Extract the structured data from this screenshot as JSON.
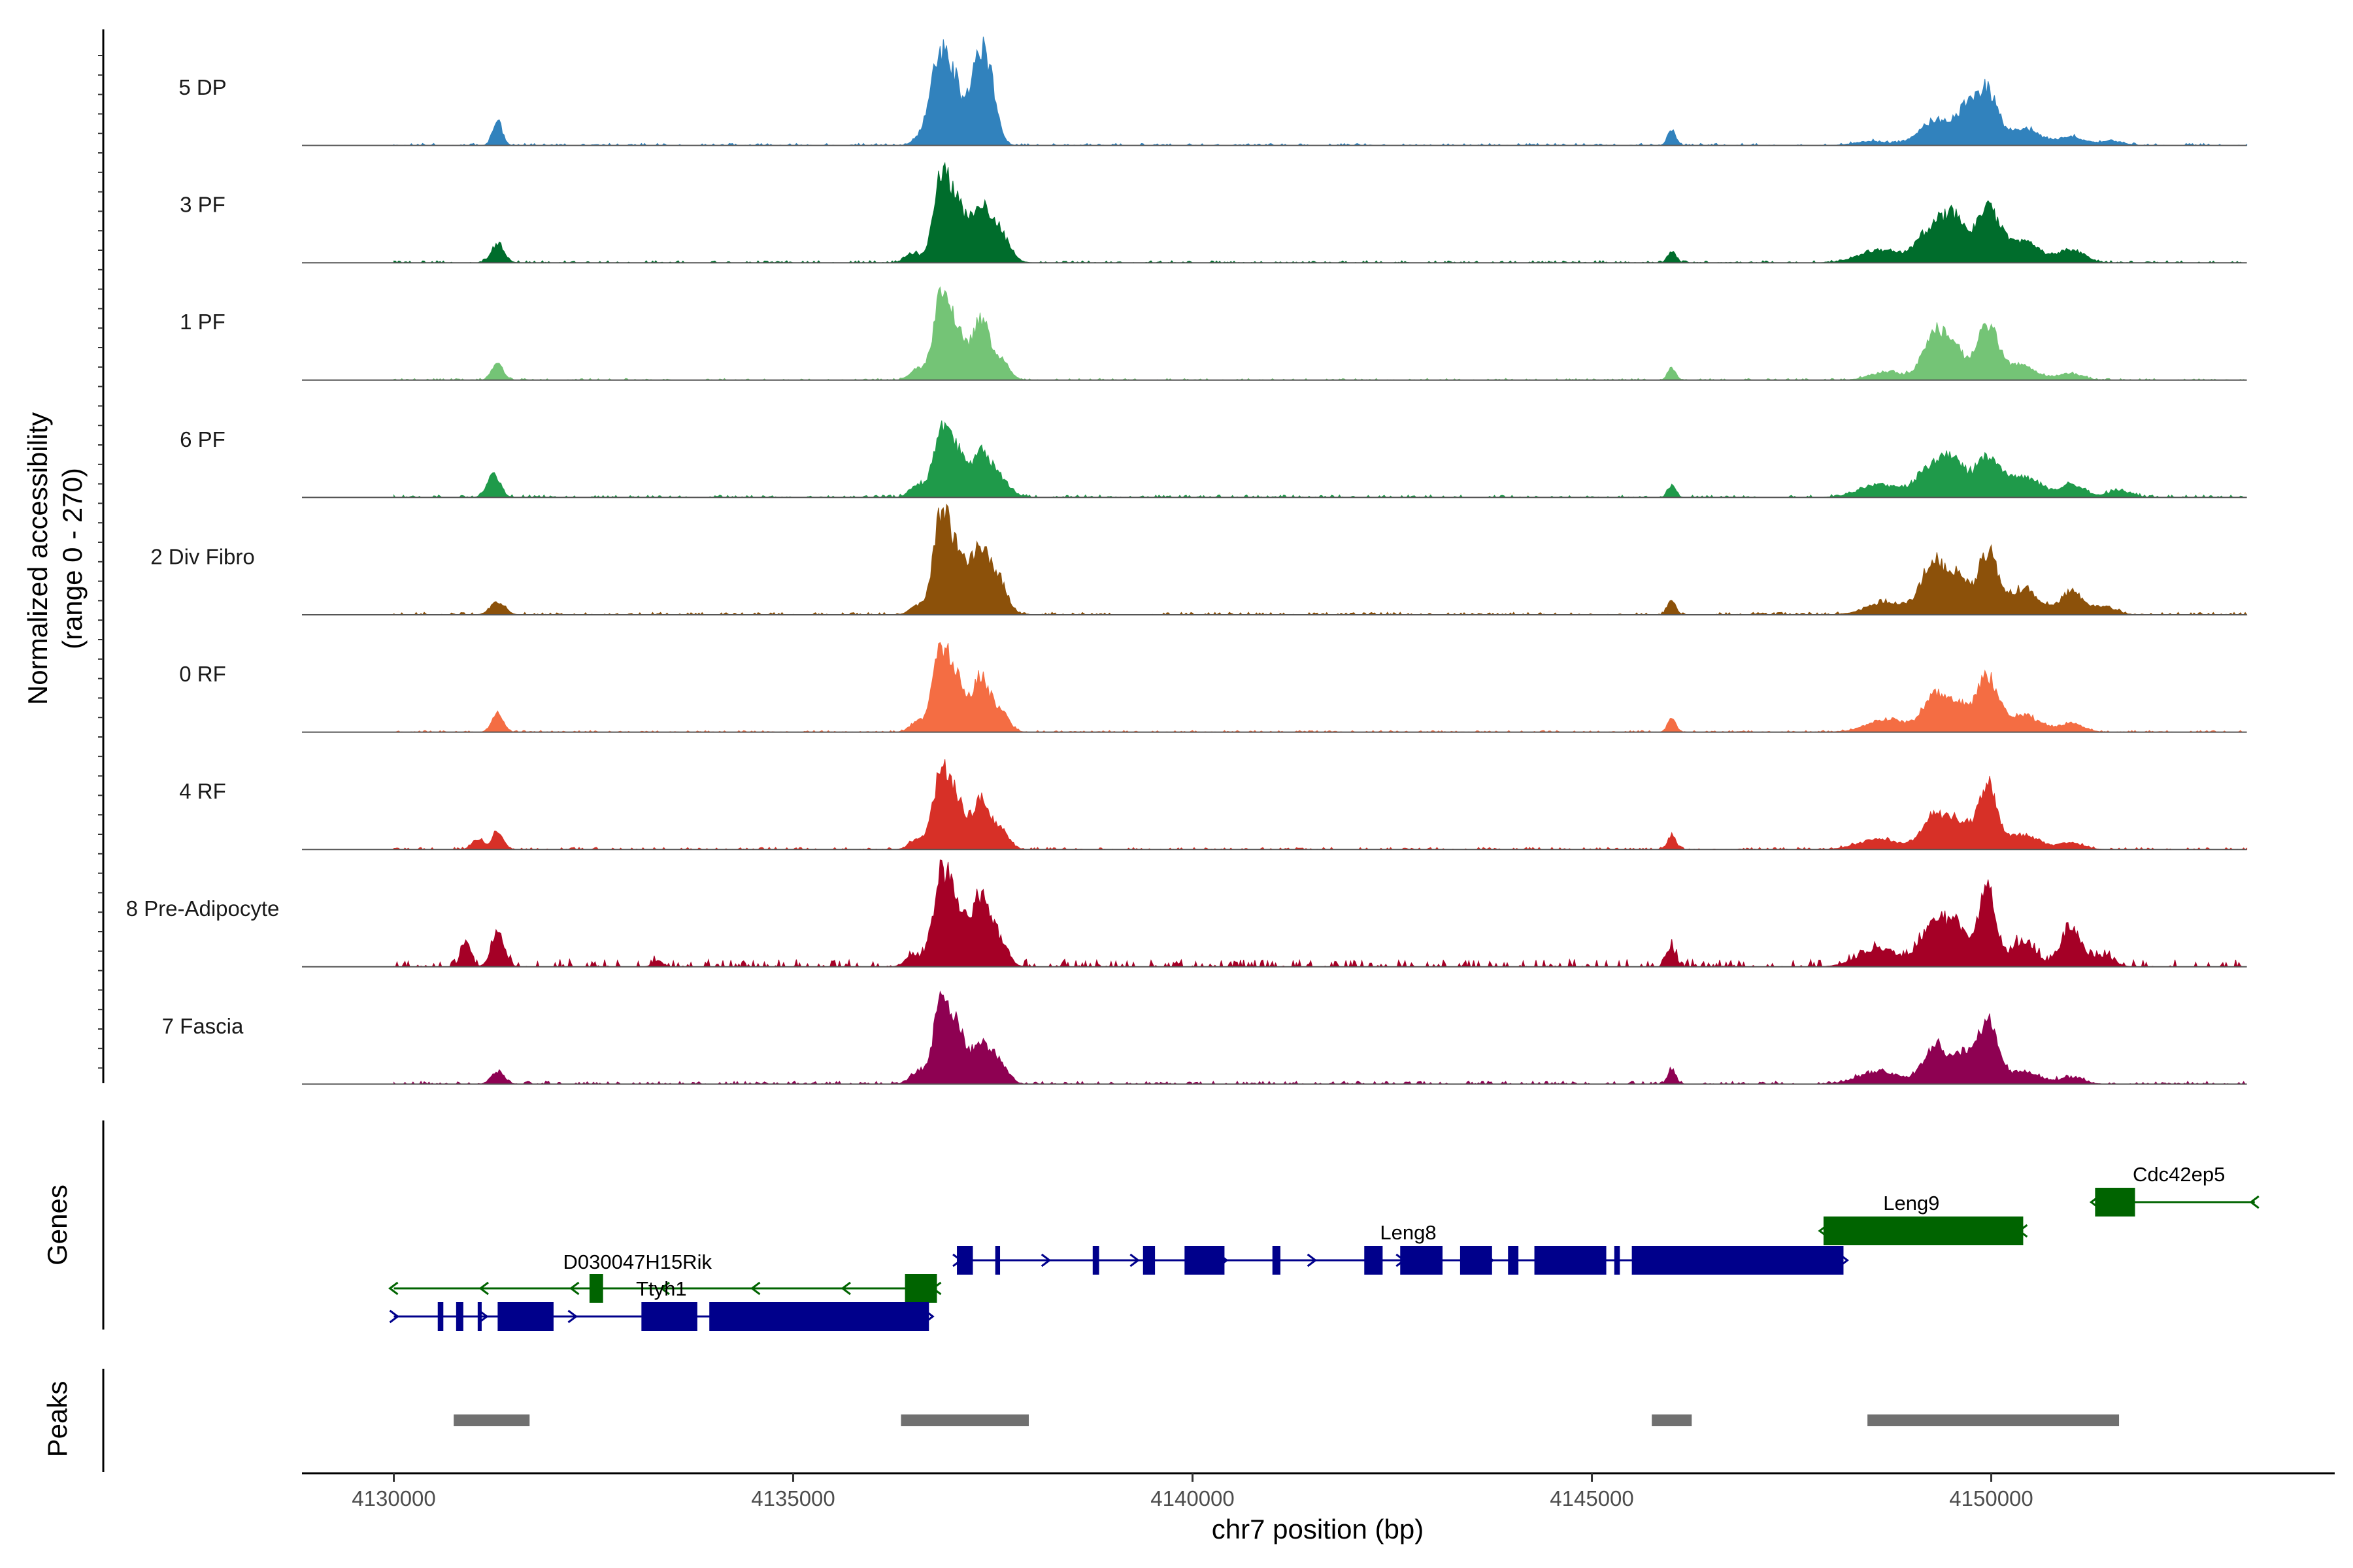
{
  "chart_data": {
    "type": "area",
    "title": "",
    "chromosome": "chr7",
    "xlabel": "chr7 position (bp)",
    "ylabel": "Normalized accessibility",
    "ylabel_range": "(range 0 - 270)",
    "xlim": [
      4128850,
      4154300
    ],
    "ylim": [
      0,
      270
    ],
    "x_ticks": [
      4130000,
      4135000,
      4140000,
      4145000,
      4150000
    ],
    "x_tick_labels": [
      "4130000",
      "4135000",
      "4140000",
      "4145000",
      "4150000"
    ],
    "data_range": [
      4130000,
      4153200
    ],
    "tracks": [
      {
        "name": "5 DP",
        "color": "#3182bd",
        "noise": 5,
        "seed": 11,
        "peaks": [
          [
            4131300,
            55,
            60
          ],
          [
            4136550,
            10,
            80
          ],
          [
            4136800,
            178,
            110
          ],
          [
            4137000,
            150,
            110
          ],
          [
            4137300,
            170,
            100
          ],
          [
            4137450,
            140,
            100
          ],
          [
            4146000,
            38,
            50
          ],
          [
            4148500,
            10,
            200
          ],
          [
            4149300,
            60,
            200
          ],
          [
            4149700,
            80,
            130
          ],
          [
            4149950,
            120,
            130
          ],
          [
            4150400,
            40,
            200
          ],
          [
            4151000,
            20,
            160
          ],
          [
            4151500,
            10,
            150
          ]
        ]
      },
      {
        "name": "3 PF",
        "color": "#006d2c",
        "noise": 5,
        "seed": 22,
        "peaks": [
          [
            4131300,
            45,
            80
          ],
          [
            4136500,
            22,
            90
          ],
          [
            4136850,
            200,
            100
          ],
          [
            4137050,
            120,
            100
          ],
          [
            4137350,
            130,
            130
          ],
          [
            4137600,
            60,
            120
          ],
          [
            4146000,
            28,
            50
          ],
          [
            4148600,
            30,
            250
          ],
          [
            4149300,
            90,
            200
          ],
          [
            4149550,
            70,
            120
          ],
          [
            4149950,
            125,
            150
          ],
          [
            4150400,
            50,
            200
          ],
          [
            4151000,
            30,
            160
          ]
        ]
      },
      {
        "name": "1 PF",
        "color": "#74c476",
        "noise": 4,
        "seed": 33,
        "peaks": [
          [
            4131300,
            40,
            70
          ],
          [
            4136550,
            25,
            90
          ],
          [
            4136850,
            190,
            100
          ],
          [
            4137050,
            110,
            100
          ],
          [
            4137350,
            140,
            110
          ],
          [
            4137600,
            45,
            100
          ],
          [
            4146000,
            28,
            50
          ],
          [
            4148700,
            20,
            200
          ],
          [
            4149300,
            110,
            150
          ],
          [
            4149550,
            60,
            120
          ],
          [
            4149950,
            130,
            130
          ],
          [
            4150350,
            35,
            200
          ],
          [
            4151000,
            15,
            150
          ]
        ]
      },
      {
        "name": "6 PF",
        "color": "#1f9a4a",
        "noise": 6,
        "seed": 44,
        "peaks": [
          [
            4131250,
            55,
            80
          ],
          [
            4136550,
            30,
            90
          ],
          [
            4136850,
            150,
            100
          ],
          [
            4137050,
            100,
            100
          ],
          [
            4137350,
            110,
            120
          ],
          [
            4137600,
            40,
            120
          ],
          [
            4146000,
            28,
            50
          ],
          [
            4148600,
            30,
            250
          ],
          [
            4149300,
            80,
            200
          ],
          [
            4149550,
            60,
            120
          ],
          [
            4149950,
            95,
            150
          ],
          [
            4150400,
            50,
            200
          ],
          [
            4151000,
            30,
            160
          ],
          [
            4151600,
            15,
            150
          ]
        ]
      },
      {
        "name": "2 Div Fibro",
        "color": "#8c510a",
        "noise": 6,
        "seed": 55,
        "peaks": [
          [
            4131300,
            30,
            90
          ],
          [
            4136550,
            20,
            90
          ],
          [
            4136850,
            225,
            100
          ],
          [
            4137050,
            130,
            100
          ],
          [
            4137350,
            160,
            130
          ],
          [
            4137600,
            60,
            100
          ],
          [
            4146000,
            35,
            50
          ],
          [
            4148700,
            30,
            250
          ],
          [
            4149300,
            130,
            160
          ],
          [
            4149600,
            80,
            100
          ],
          [
            4149950,
            145,
            130
          ],
          [
            4150400,
            60,
            200
          ],
          [
            4151000,
            55,
            130
          ],
          [
            4151400,
            20,
            150
          ]
        ]
      },
      {
        "name": "0 RF",
        "color": "#f46d43",
        "noise": 4,
        "seed": 66,
        "peaks": [
          [
            4131300,
            45,
            70
          ],
          [
            4136550,
            25,
            90
          ],
          [
            4136850,
            190,
            100
          ],
          [
            4137050,
            110,
            100
          ],
          [
            4137350,
            130,
            110
          ],
          [
            4137600,
            45,
            100
          ],
          [
            4146000,
            32,
            50
          ],
          [
            4148700,
            30,
            250
          ],
          [
            4149300,
            90,
            150
          ],
          [
            4149600,
            60,
            120
          ],
          [
            4149950,
            130,
            130
          ],
          [
            4150400,
            40,
            200
          ],
          [
            4151000,
            20,
            150
          ]
        ]
      },
      {
        "name": "4 RF",
        "color": "#d73027",
        "noise": 5,
        "seed": 77,
        "peaks": [
          [
            4131050,
            25,
            70
          ],
          [
            4131300,
            40,
            70
          ],
          [
            4136550,
            25,
            90
          ],
          [
            4136850,
            180,
            100
          ],
          [
            4137050,
            110,
            100
          ],
          [
            4137350,
            120,
            110
          ],
          [
            4137600,
            45,
            100
          ],
          [
            4146000,
            35,
            50
          ],
          [
            4148600,
            25,
            250
          ],
          [
            4149300,
            85,
            150
          ],
          [
            4149600,
            60,
            120
          ],
          [
            4149950,
            155,
            120
          ],
          [
            4150400,
            35,
            200
          ],
          [
            4151000,
            15,
            150
          ]
        ]
      },
      {
        "name": "8 Pre-Adipocyte",
        "color": "#a50026",
        "noise": 18,
        "seed": 88,
        "peaks": [
          [
            4130900,
            60,
            60
          ],
          [
            4131300,
            80,
            80
          ],
          [
            4133300,
            15,
            60
          ],
          [
            4136500,
            30,
            90
          ],
          [
            4136850,
            200,
            100
          ],
          [
            4137050,
            130,
            100
          ],
          [
            4137350,
            170,
            120
          ],
          [
            4137600,
            50,
            100
          ],
          [
            4146000,
            45,
            50
          ],
          [
            4148600,
            45,
            250
          ],
          [
            4149300,
            110,
            160
          ],
          [
            4149600,
            80,
            120
          ],
          [
            4149950,
            185,
            110
          ],
          [
            4150400,
            60,
            150
          ],
          [
            4151000,
            90,
            130
          ],
          [
            4151400,
            25,
            130
          ]
        ]
      },
      {
        "name": "7 Fascia",
        "color": "#8e0152",
        "noise": 7,
        "seed": 99,
        "peaks": [
          [
            4131300,
            30,
            80
          ],
          [
            4136550,
            25,
            90
          ],
          [
            4136850,
            185,
            100
          ],
          [
            4137050,
            120,
            100
          ],
          [
            4137350,
            100,
            120
          ],
          [
            4137600,
            45,
            100
          ],
          [
            4146000,
            35,
            50
          ],
          [
            4148600,
            30,
            250
          ],
          [
            4149300,
            90,
            150
          ],
          [
            4149650,
            65,
            120
          ],
          [
            4149950,
            150,
            120
          ],
          [
            4150400,
            30,
            200
          ],
          [
            4151000,
            15,
            150
          ]
        ]
      }
    ],
    "genes": [
      {
        "name": "D030047H15Rik",
        "strand": "-",
        "color": "#006400",
        "start": 4130000,
        "end": 4136800,
        "exons": [
          [
            4132450,
            4132620
          ],
          [
            4136400,
            4136800
          ]
        ]
      },
      {
        "name": "Ttyh1",
        "strand": "+",
        "color": "#00008b",
        "start": 4130000,
        "end": 4136700,
        "exons": [
          [
            4130550,
            4130620
          ],
          [
            4130780,
            4130870
          ],
          [
            4131050,
            4131100
          ],
          [
            4131300,
            4132000
          ],
          [
            4133100,
            4133800
          ],
          [
            4133950,
            4136700
          ]
        ]
      },
      {
        "name": "Leng8",
        "strand": "+",
        "color": "#00008b",
        "start": 4137050,
        "end": 4148150,
        "exons": [
          [
            4137050,
            4137250
          ],
          [
            4137530,
            4137590
          ],
          [
            4138750,
            4138830
          ],
          [
            4139380,
            4139530
          ],
          [
            4139900,
            4140400
          ],
          [
            4141000,
            4141100
          ],
          [
            4142150,
            4142380
          ],
          [
            4142600,
            4143130
          ],
          [
            4143350,
            4143750
          ],
          [
            4143950,
            4144080
          ],
          [
            4144280,
            4145180
          ],
          [
            4145280,
            4145350
          ],
          [
            4145500,
            4148150
          ]
        ]
      },
      {
        "name": "Leng9",
        "strand": "-",
        "color": "#006400",
        "start": 4147900,
        "end": 4150400,
        "exons": [
          [
            4147900,
            4150400
          ]
        ]
      },
      {
        "name": "Cdc42ep5",
        "strand": "-",
        "color": "#006400",
        "start": 4151300,
        "end": 4153300,
        "exons": [
          [
            4151300,
            4151800
          ]
        ]
      }
    ],
    "peaks_track": [
      [
        4130750,
        4131700
      ],
      [
        4136350,
        4137950
      ],
      [
        4145750,
        4146250
      ],
      [
        4148450,
        4151600
      ]
    ],
    "genes_label": "Genes",
    "peaks_label": "Peaks"
  }
}
